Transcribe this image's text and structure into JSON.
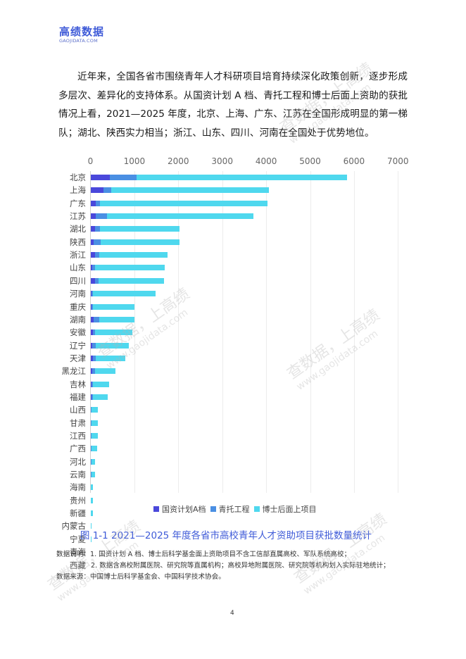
{
  "header": {
    "logo_title": "高绩数据",
    "logo_subtitle": "GAOJIDATA.COM"
  },
  "paragraph": "近年来，全国各省市围绕青年人才科研项目培育持续深化政策创新，逐步形成多层次、差异化的支持体系。从国资计划 A 档、青托工程和博士后面上资助的获批情况上看，2021—2025 年度，北京、上海、广东、江苏在全国形成明显的第一梯队；湖北、陕西实力相当；浙江、山东、四川、河南在全国处于优势地位。",
  "colors": {
    "series_a": "#4a48db",
    "series_qt": "#4a8fe3",
    "series_bsh": "#4fd8ee",
    "caption": "#3f5bd8"
  },
  "chart_data": {
    "type": "bar",
    "orientation": "horizontal",
    "stacked": true,
    "title": "图 1-1   2021—2025 年度各省市高校青年人才资助项目获批数量统计",
    "xlabel": "",
    "ylabel": "",
    "xlim": [
      0,
      7000
    ],
    "x_ticks": [
      "0",
      "1000",
      "2000",
      "3000",
      "4000",
      "5000",
      "6000",
      "7000"
    ],
    "x_axis_position": "top",
    "grid": true,
    "legend_position": "bottom",
    "categories": [
      "北京",
      "上海",
      "广东",
      "江苏",
      "湖北",
      "陕西",
      "浙江",
      "山东",
      "四川",
      "河南",
      "重庆",
      "湖南",
      "安徽",
      "辽宁",
      "天津",
      "黑龙江",
      "吉林",
      "福建",
      "山西",
      "甘肃",
      "江西",
      "广西",
      "河北",
      "云南",
      "海南",
      "贵州",
      "新疆",
      "内蒙古",
      "宁夏",
      "青海",
      "西藏"
    ],
    "series": [
      {
        "name": "国资计划A档",
        "values": [
          430,
          290,
          110,
          120,
          95,
          65,
          100,
          40,
          100,
          20,
          10,
          65,
          55,
          40,
          55,
          40,
          20,
          20,
          5,
          5,
          5,
          5,
          5,
          5,
          3,
          3,
          3,
          2,
          0,
          0,
          0
        ]
      },
      {
        "name": "青托工程",
        "values": [
          615,
          170,
          100,
          255,
          120,
          155,
          85,
          60,
          75,
          30,
          40,
          125,
          40,
          65,
          50,
          55,
          30,
          30,
          10,
          10,
          10,
          10,
          10,
          10,
          5,
          5,
          5,
          3,
          1,
          1,
          0
        ]
      },
      {
        "name": "博士后面上项目",
        "values": [
          4795,
          3600,
          3820,
          3325,
          1810,
          1800,
          1570,
          1590,
          1495,
          1425,
          950,
          800,
          845,
          755,
          675,
          465,
          370,
          330,
          150,
          150,
          150,
          130,
          80,
          80,
          45,
          45,
          45,
          16,
          3,
          1,
          1
        ]
      }
    ],
    "totals": [
      5840,
      4060,
      4030,
      3700,
      2025,
      2020,
      1755,
      1690,
      1670,
      1475,
      1000,
      990,
      940,
      860,
      780,
      560,
      420,
      380,
      165,
      165,
      165,
      145,
      95,
      95,
      53,
      53,
      53,
      21,
      4,
      2,
      1
    ]
  },
  "caption": "图 1-1   2021—2025 年度各省市高校青年人才资助项目获批数量统计",
  "notes": {
    "line1": "数据说明：1. 国资计划 A 档、博士后科学基金面上资助项目不含工信部直属高校、军队系统高校；",
    "line2": "2. 数据含高校附属医院、研究院等直属机构；高校异地附属医院、研究院等机构划入实际驻地统计；",
    "line3": "数据来源：中国博士后科学基金会、中国科学技术协会。"
  },
  "page_number": "4",
  "watermark": {
    "text": "查数据，上高绩",
    "url": "www.gaojidata.com"
  }
}
